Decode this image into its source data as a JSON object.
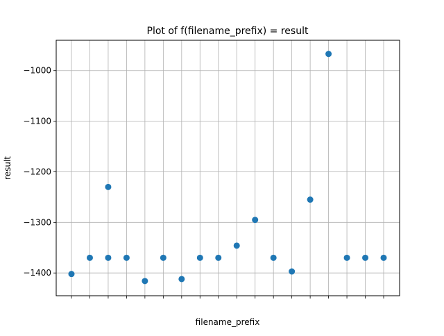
{
  "chart_data": {
    "type": "scatter",
    "title": "Plot of f(filename_prefix) = result",
    "xlabel": "filename_prefix",
    "ylabel": "result",
    "ylim": [
      -1445,
      -940
    ],
    "yticks": [
      -1400,
      -1300,
      -1200,
      -1100,
      -1000
    ],
    "grid": true,
    "marker_color": "#1f77b4",
    "series": [
      {
        "values": [
          -1402,
          -1370,
          -1230,
          -1370,
          -1370,
          -1416,
          -1370,
          -1412,
          -1370,
          -1370,
          -1346,
          -1295,
          -1370,
          -1397,
          -1255,
          -967,
          -1370,
          -1370,
          -1370
        ]
      }
    ],
    "point_x_index": [
      0,
      1,
      2,
      2,
      3,
      4,
      5,
      6,
      7,
      8,
      9,
      10,
      11,
      12,
      13,
      14,
      15,
      16,
      17
    ]
  }
}
